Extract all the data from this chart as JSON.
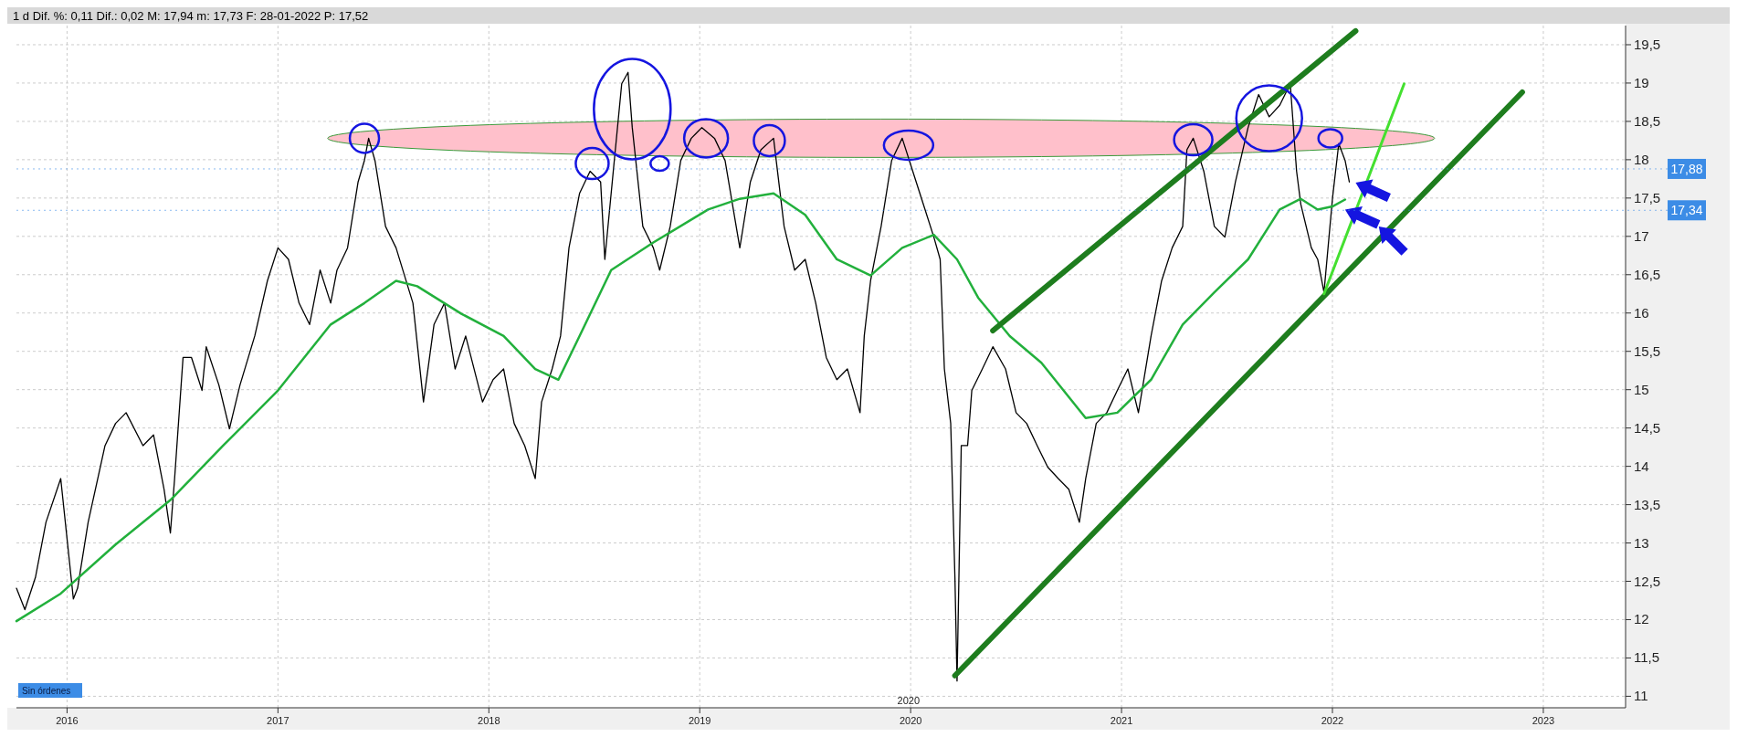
{
  "chart_data": {
    "type": "line",
    "title": "1 d  Dif. %: 0,11  Dif.: 0,02  M: 17,94  m: 17,73  F: 28-01-2022  P: 17,52",
    "annotations": [
      "Sin órdenes",
      "2020"
    ],
    "xlim": [
      2015.76,
      2023.39
    ],
    "xticks": [
      2016,
      2017,
      2018,
      2019,
      2020,
      2021,
      2022,
      2023
    ],
    "ylim": [
      10.85,
      19.75
    ],
    "yticks": [
      {
        "value": 11,
        "label": "11"
      },
      {
        "value": 11.5,
        "label": "11,5"
      },
      {
        "value": 12,
        "label": "12"
      },
      {
        "value": 12.5,
        "label": "12,5"
      },
      {
        "value": 13,
        "label": "13"
      },
      {
        "value": 13.5,
        "label": "13,5"
      },
      {
        "value": 14,
        "label": "14"
      },
      {
        "value": 14.5,
        "label": "14,5"
      },
      {
        "value": 15,
        "label": "15"
      },
      {
        "value": 15.5,
        "label": "15,5"
      },
      {
        "value": 16,
        "label": "16"
      },
      {
        "value": 16.5,
        "label": "16,5"
      },
      {
        "value": 17,
        "label": "17"
      },
      {
        "value": 17.5,
        "label": "17,5"
      },
      {
        "value": 18,
        "label": "18"
      },
      {
        "value": 18.5,
        "label": "18,5"
      },
      {
        "value": 19,
        "label": "19"
      },
      {
        "value": 19.5,
        "label": "19,5"
      }
    ],
    "grid": true,
    "marker": "none",
    "line_style": "solid",
    "ref_lines": [
      {
        "axis": "y",
        "value": 17.88,
        "label": "17,88",
        "color": "#3c8ce6"
      },
      {
        "axis": "y",
        "value": 17.34,
        "label": "17,34",
        "color": "#3c8ce6"
      }
    ],
    "series": [
      {
        "color": "#000000",
        "x": [
          2015.76,
          2015.8,
          2015.85,
          2015.9,
          2015.97,
          2016.03,
          2016.05,
          2016.1,
          2016.18,
          2016.23,
          2016.28,
          2016.36,
          2016.41,
          2016.46,
          2016.49,
          2016.51,
          2016.55,
          2016.59,
          2016.64,
          2016.66,
          2016.72,
          2016.77,
          2016.82,
          2016.89,
          2016.95,
          2017,
          2017.05,
          2017.1,
          2017.15,
          2017.2,
          2017.25,
          2017.28,
          2017.33,
          2017.38,
          2017.41,
          2017.43,
          2017.46,
          2017.51,
          2017.56,
          2017.64,
          2017.69,
          2017.74,
          2017.79,
          2017.84,
          2017.89,
          2017.97,
          2018.02,
          2018.07,
          2018.12,
          2018.17,
          2018.22,
          2018.25,
          2018.3,
          2018.34,
          2018.38,
          2018.43,
          2018.48,
          2018.53,
          2018.55,
          2018.59,
          2018.63,
          2018.66,
          2018.68,
          2018.73,
          2018.78,
          2018.81,
          2018.86,
          2018.91,
          2018.96,
          2019.01,
          2019.07,
          2019.12,
          2019.19,
          2019.24,
          2019.29,
          2019.35,
          2019.4,
          2019.45,
          2019.5,
          2019.55,
          2019.6,
          2019.65,
          2019.7,
          2019.76,
          2019.78,
          2019.81,
          2019.86,
          2019.91,
          2019.96,
          2020.01,
          2020.06,
          2020.11,
          2020.14,
          2020.16,
          2020.19,
          2020.21,
          2020.22,
          2020.24,
          2020.27,
          2020.29,
          2020.34,
          2020.39,
          2020.45,
          2020.5,
          2020.55,
          2020.6,
          2020.65,
          2020.7,
          2020.75,
          2020.8,
          2020.83,
          2020.88,
          2020.93,
          2020.98,
          2021.03,
          2021.08,
          2021.14,
          2021.19,
          2021.24,
          2021.29,
          2021.31,
          2021.34,
          2021.39,
          2021.44,
          2021.49,
          2021.54,
          2021.6,
          2021.65,
          2021.7,
          2021.75,
          2021.8,
          2021.83,
          2021.85,
          2021.9,
          2021.93,
          2021.96,
          2022,
          2022.03,
          2022.06,
          2022.08
        ],
        "values": [
          12.41,
          12.13,
          12.55,
          13.27,
          13.84,
          12.27,
          12.41,
          13.27,
          14.27,
          14.56,
          14.7,
          14.27,
          14.41,
          13.7,
          13.13,
          13.84,
          15.42,
          15.42,
          14.99,
          15.56,
          15.06,
          14.49,
          15.06,
          15.7,
          16.42,
          16.85,
          16.7,
          16.13,
          15.85,
          16.56,
          16.13,
          16.56,
          16.85,
          17.71,
          17.99,
          18.28,
          17.99,
          17.13,
          16.85,
          16.13,
          14.84,
          15.85,
          16.13,
          15.27,
          15.7,
          14.84,
          15.13,
          15.27,
          14.56,
          14.27,
          13.84,
          14.84,
          15.27,
          15.7,
          16.85,
          17.56,
          17.85,
          17.71,
          16.7,
          17.85,
          18.99,
          19.14,
          18.42,
          17.13,
          16.85,
          16.56,
          17.13,
          17.99,
          18.28,
          18.42,
          18.28,
          17.99,
          16.85,
          17.71,
          18.13,
          18.28,
          17.13,
          16.56,
          16.7,
          16.13,
          15.42,
          15.13,
          15.27,
          14.7,
          15.7,
          16.42,
          17.13,
          17.99,
          18.28,
          17.85,
          17.42,
          16.99,
          16.7,
          15.27,
          14.56,
          12.55,
          11.2,
          14.27,
          14.27,
          14.99,
          15.27,
          15.56,
          15.27,
          14.7,
          14.56,
          14.27,
          13.99,
          13.84,
          13.7,
          13.27,
          13.84,
          14.56,
          14.7,
          14.99,
          15.27,
          14.7,
          15.7,
          16.42,
          16.85,
          17.13,
          18.13,
          18.28,
          17.85,
          17.13,
          16.99,
          17.71,
          18.42,
          18.85,
          18.56,
          18.71,
          18.99,
          17.85,
          17.42,
          16.85,
          16.7,
          16.27,
          17.49,
          18.21,
          17.99,
          17.71
        ]
      },
      {
        "color": "#22b03c",
        "x": [
          2015.76,
          2015.97,
          2016.23,
          2016.49,
          2016.74,
          2017,
          2017.25,
          2017.41,
          2017.56,
          2017.66,
          2017.87,
          2018.07,
          2018.22,
          2018.33,
          2018.43,
          2018.58,
          2018.78,
          2019.04,
          2019.19,
          2019.35,
          2019.5,
          2019.65,
          2019.81,
          2019.96,
          2020.11,
          2020.22,
          2020.32,
          2020.47,
          2020.62,
          2020.83,
          2020.98,
          2021.14,
          2021.29,
          2021.44,
          2021.6,
          2021.75,
          2021.85,
          2021.93,
          2022,
          2022.06
        ],
        "values": [
          11.98,
          12.34,
          12.98,
          13.56,
          14.27,
          14.99,
          15.85,
          16.13,
          16.42,
          16.35,
          15.99,
          15.7,
          15.27,
          15.13,
          15.7,
          16.56,
          16.92,
          17.35,
          17.49,
          17.56,
          17.28,
          16.7,
          16.49,
          16.85,
          17.02,
          16.7,
          16.2,
          15.7,
          15.35,
          14.63,
          14.7,
          15.13,
          15.85,
          16.27,
          16.7,
          17.35,
          17.49,
          17.35,
          17.39,
          17.48
        ]
      },
      {
        "color": "#1e7d1e",
        "x": [
          2020.21,
          2022.9
        ],
        "values": [
          11.27,
          18.88
        ]
      },
      {
        "color": "#1e7d1e",
        "x": [
          2020.39,
          2022.11
        ],
        "values": [
          15.77,
          19.68
        ]
      },
      {
        "color": "#44e030",
        "x": [
          2021.96,
          2022.34
        ],
        "values": [
          16.25,
          18.99
        ]
      }
    ]
  }
}
